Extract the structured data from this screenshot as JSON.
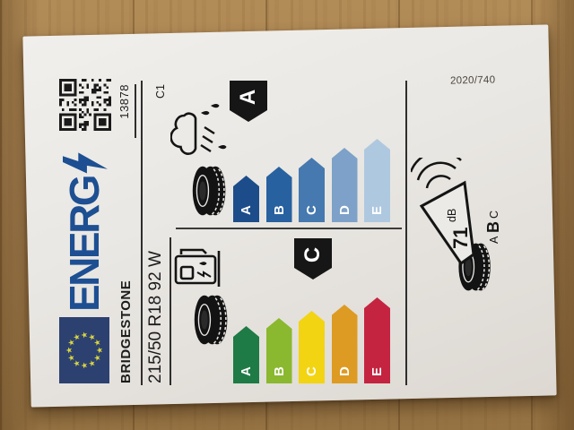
{
  "page": {
    "regulation_number": "2020/740"
  },
  "label": {
    "logo_text": "ENERG",
    "type_identifier": "13878",
    "supplier_name": "BRIDGESTONE",
    "tyre_designation": "215/50 R18 92 W",
    "tyre_class": "C1",
    "fuel_efficiency": {
      "icon": "fuel-pump-tyre-icon",
      "classes": [
        "A",
        "B",
        "C",
        "D",
        "E"
      ],
      "colors": [
        "#1e7b45",
        "#8ab82f",
        "#f2d413",
        "#dd9b23",
        "#c42440"
      ],
      "rating": "C"
    },
    "wet_grip": {
      "icon": "rain-cloud-tyre-icon",
      "classes": [
        "A",
        "B",
        "C",
        "D",
        "E"
      ],
      "colors": [
        "#1c4d8a",
        "#28619f",
        "#4579af",
        "#7da1c8",
        "#aec8e0"
      ],
      "rating": "A"
    },
    "noise": {
      "icon": "noise-speaker-tyre-icon",
      "value": "71",
      "unit": "dB",
      "classes": [
        "A",
        "B",
        "C"
      ],
      "rating": "B"
    }
  },
  "colors": {
    "logo_blue": "#1d4f92",
    "flag_blue": "#2d4170",
    "flag_stars": "#d9d43f",
    "badge_black": "#161616",
    "paper": "#e9e7e3",
    "wood": "#a5804e"
  }
}
